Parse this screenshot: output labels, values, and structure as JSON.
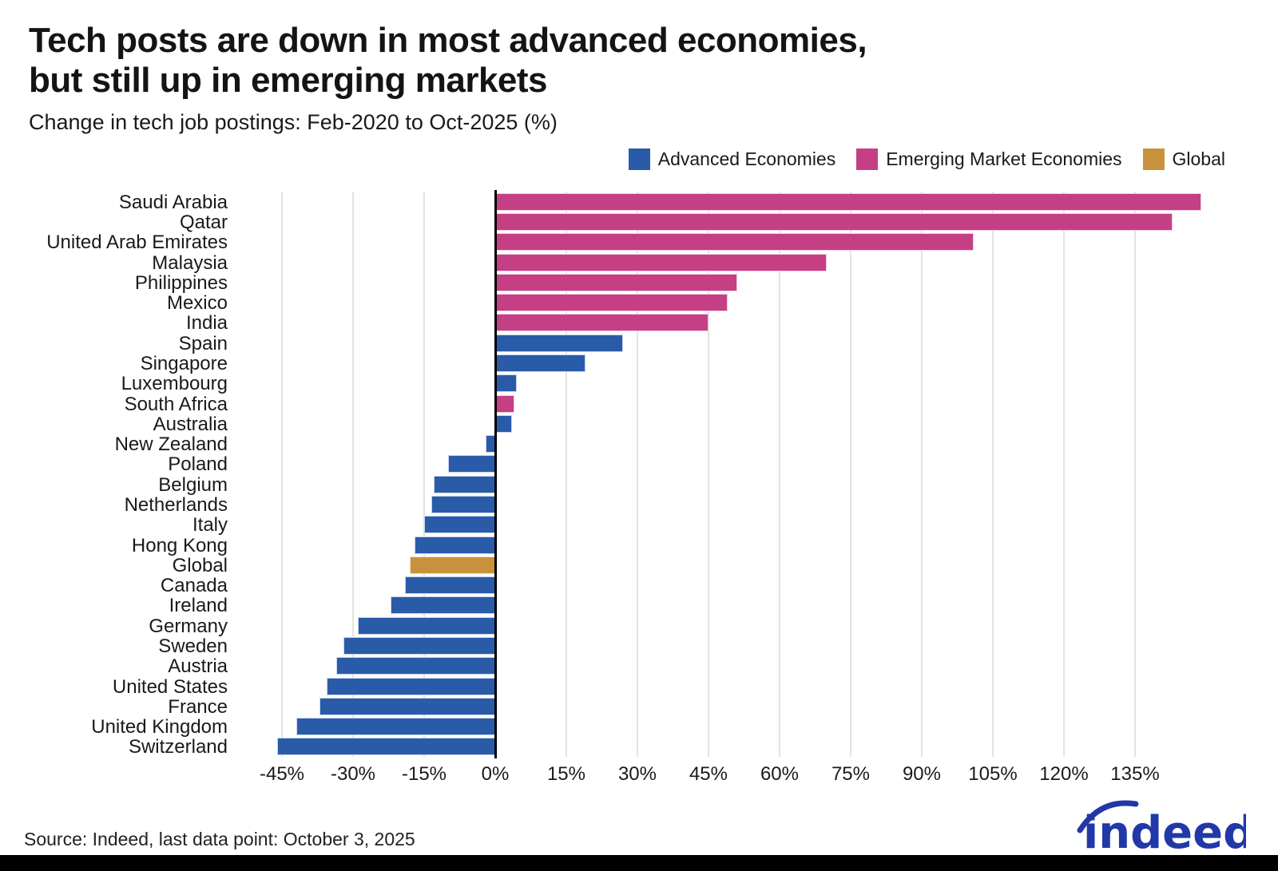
{
  "header": {
    "title_line1": "Tech posts are down in most advanced economies,",
    "title_line2": "but still up in emerging markets",
    "subtitle": "Change in tech job postings: Feb-2020 to Oct-2025 (%)"
  },
  "legend": {
    "items": [
      {
        "label": "Advanced Economies",
        "key": "advanced",
        "color": "#2a5ba9"
      },
      {
        "label": "Emerging Market Economies",
        "key": "emerging",
        "color": "#c53f85"
      },
      {
        "label": "Global",
        "key": "global",
        "color": "#c8923c"
      }
    ]
  },
  "colors": {
    "advanced": "#2a5ba9",
    "emerging": "#c53f85",
    "global": "#c8923c",
    "gridline": "#e3e3e3",
    "zero_axis": "#000000",
    "logo_blue": "#2038a8"
  },
  "chart_data": {
    "type": "bar",
    "orientation": "horizontal",
    "title": "Tech posts are down in most advanced economies, but still up in emerging markets",
    "subtitle": "Change in tech job postings: Feb-2020 to Oct-2025 (%)",
    "unit": "%",
    "xlim": [
      -54,
      153
    ],
    "grid": true,
    "legend_position": "top-right",
    "x_ticks": [
      -45,
      -30,
      -15,
      0,
      15,
      30,
      45,
      60,
      75,
      90,
      105,
      120,
      135
    ],
    "x_tick_labels": [
      "-45%",
      "-30%",
      "-15%",
      "0%",
      "15%",
      "30%",
      "45%",
      "60%",
      "75%",
      "90%",
      "105%",
      "120%",
      "135%"
    ],
    "rows": [
      {
        "label": "Saudi Arabia",
        "value": 149,
        "group": "emerging"
      },
      {
        "label": "Qatar",
        "value": 143,
        "group": "emerging"
      },
      {
        "label": "United Arab Emirates",
        "value": 101,
        "group": "emerging"
      },
      {
        "label": "Malaysia",
        "value": 70,
        "group": "emerging"
      },
      {
        "label": "Philippines",
        "value": 51,
        "group": "emerging"
      },
      {
        "label": "Mexico",
        "value": 49,
        "group": "emerging"
      },
      {
        "label": "India",
        "value": 45,
        "group": "emerging"
      },
      {
        "label": "Spain",
        "value": 27,
        "group": "advanced"
      },
      {
        "label": "Singapore",
        "value": 19,
        "group": "advanced"
      },
      {
        "label": "Luxembourg",
        "value": 4.5,
        "group": "advanced"
      },
      {
        "label": "South Africa",
        "value": 4,
        "group": "emerging"
      },
      {
        "label": "Australia",
        "value": 3.5,
        "group": "advanced"
      },
      {
        "label": "New Zealand",
        "value": -2,
        "group": "advanced"
      },
      {
        "label": "Poland",
        "value": -10,
        "group": "advanced"
      },
      {
        "label": "Belgium",
        "value": -13,
        "group": "advanced"
      },
      {
        "label": "Netherlands",
        "value": -13.5,
        "group": "advanced"
      },
      {
        "label": "Italy",
        "value": -15,
        "group": "advanced"
      },
      {
        "label": "Hong Kong",
        "value": -17,
        "group": "advanced"
      },
      {
        "label": "Global",
        "value": -18,
        "group": "global"
      },
      {
        "label": "Canada",
        "value": -19,
        "group": "advanced"
      },
      {
        "label": "Ireland",
        "value": -22,
        "group": "advanced"
      },
      {
        "label": "Germany",
        "value": -29,
        "group": "advanced"
      },
      {
        "label": "Sweden",
        "value": -32,
        "group": "advanced"
      },
      {
        "label": "Austria",
        "value": -33.5,
        "group": "advanced"
      },
      {
        "label": "United States",
        "value": -35.5,
        "group": "advanced"
      },
      {
        "label": "France",
        "value": -37,
        "group": "advanced"
      },
      {
        "label": "United Kingdom",
        "value": -42,
        "group": "advanced"
      },
      {
        "label": "Switzerland",
        "value": -46,
        "group": "advanced"
      }
    ]
  },
  "footer": {
    "source": "Source: Indeed, last data point: October 3, 2025",
    "logo_text": "indeed"
  }
}
